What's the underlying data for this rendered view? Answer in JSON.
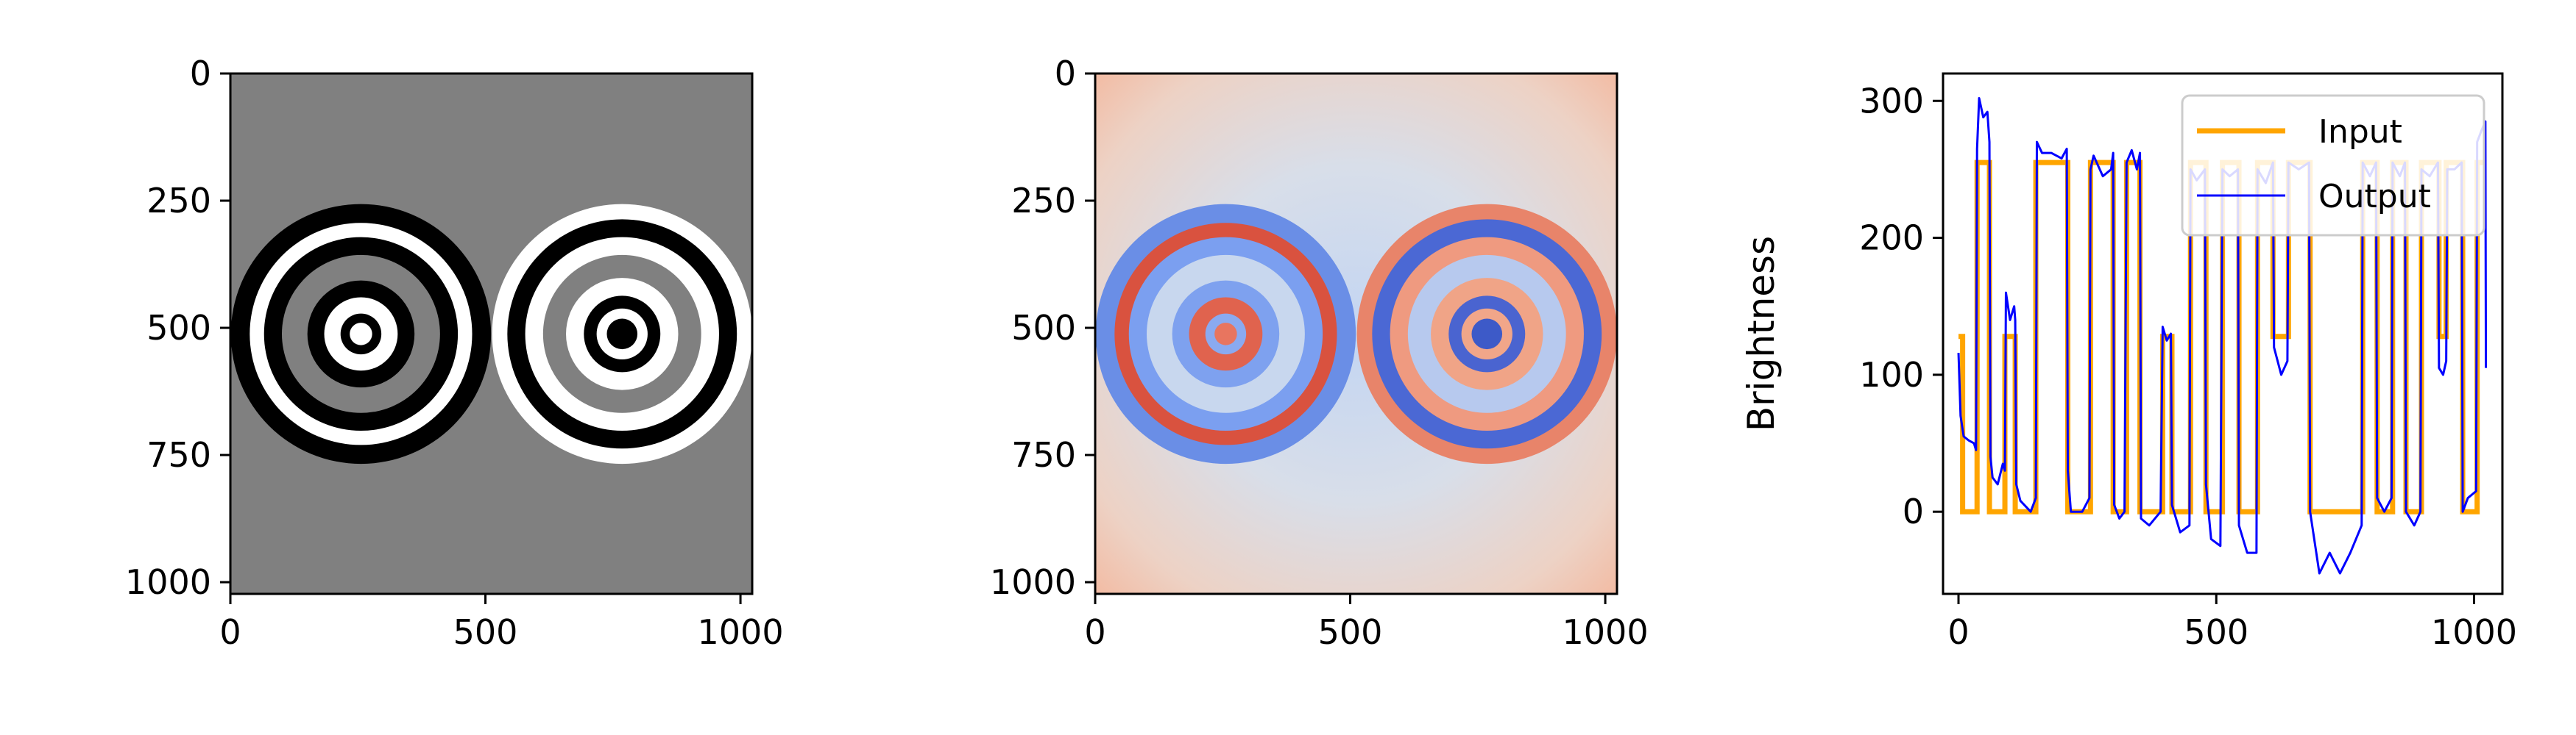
{
  "figure": {
    "background": "#ffffff"
  },
  "chart_data": [
    {
      "type": "heatmap",
      "name": "input-image",
      "colormap": "gray",
      "background_level": 128,
      "xlim": [
        0,
        1023
      ],
      "ylim": [
        1023,
        0
      ],
      "x_ticks": [
        0,
        500,
        1000
      ],
      "y_ticks": [
        0,
        250,
        500,
        750,
        1000
      ],
      "title": "",
      "xlabel": "",
      "ylabel": "",
      "targets": [
        {
          "center": [
            256,
            512
          ],
          "rings": [
            {
              "radius": 255,
              "level": 0
            },
            {
              "radius": 218,
              "level": 255
            },
            {
              "radius": 190,
              "level": 0
            },
            {
              "radius": 155,
              "level": 128
            },
            {
              "radius": 105,
              "level": 0
            },
            {
              "radius": 72,
              "level": 255
            },
            {
              "radius": 40,
              "level": 0
            },
            {
              "radius": 22,
              "level": 255
            }
          ]
        },
        {
          "center": [
            768,
            512
          ],
          "rings": [
            {
              "radius": 255,
              "level": 255
            },
            {
              "radius": 225,
              "level": 0
            },
            {
              "radius": 190,
              "level": 255
            },
            {
              "radius": 155,
              "level": 128
            },
            {
              "radius": 110,
              "level": 255
            },
            {
              "radius": 75,
              "level": 0
            },
            {
              "radius": 50,
              "level": 255
            },
            {
              "radius": 30,
              "level": 0
            }
          ]
        }
      ]
    },
    {
      "type": "heatmap",
      "name": "output-image",
      "colormap": "coolwarm",
      "xlim": [
        0,
        1023
      ],
      "ylim": [
        1023,
        0
      ],
      "x_ticks": [
        0,
        500,
        1000
      ],
      "y_ticks": [
        0,
        250,
        500,
        750,
        1000
      ],
      "title": "",
      "xlabel": "",
      "ylabel": "",
      "targets": [
        {
          "center": [
            256,
            512
          ],
          "rings": [
            {
              "radius": 255,
              "color": "#6a8ee6"
            },
            {
              "radius": 218,
              "color": "#d9523f"
            },
            {
              "radius": 190,
              "color": "#7b9ff0"
            },
            {
              "radius": 155,
              "color": "#c8d7ee"
            },
            {
              "radius": 105,
              "color": "#7ea1ef"
            },
            {
              "radius": 72,
              "color": "#e0634e"
            },
            {
              "radius": 40,
              "color": "#8aaaf0"
            },
            {
              "radius": 22,
              "color": "#e8755f"
            }
          ]
        },
        {
          "center": [
            768,
            512
          ],
          "rings": [
            {
              "radius": 255,
              "color": "#e8846a"
            },
            {
              "radius": 225,
              "color": "#4b68d4"
            },
            {
              "radius": 190,
              "color": "#ef9a80"
            },
            {
              "radius": 155,
              "color": "#b7c9ee"
            },
            {
              "radius": 110,
              "color": "#f0a487"
            },
            {
              "radius": 75,
              "color": "#4a64d0"
            },
            {
              "radius": 50,
              "color": "#f1a689"
            },
            {
              "radius": 30,
              "color": "#3d5ac8"
            }
          ]
        }
      ]
    },
    {
      "type": "line",
      "name": "profile-plot",
      "xlim": [
        -30,
        1055
      ],
      "ylim": [
        -60,
        320
      ],
      "x_ticks": [
        0,
        500,
        1000
      ],
      "y_ticks": [
        0,
        100,
        200,
        300
      ],
      "xlabel": "",
      "ylabel": "Brightness",
      "title": "",
      "grid": false,
      "legend_position": "top-right",
      "series": [
        {
          "name": "Input",
          "color": "#ffa500",
          "segments": [
            [
              0,
              128
            ],
            [
              8,
              0
            ],
            [
              36,
              255
            ],
            [
              60,
              0
            ],
            [
              90,
              128
            ],
            [
              110,
              0
            ],
            [
              150,
              255
            ],
            [
              212,
              0
            ],
            [
              256,
              255
            ],
            [
              300,
              0
            ],
            [
              326,
              255
            ],
            [
              352,
              0
            ],
            [
              396,
              128
            ],
            [
              414,
              0
            ],
            [
              450,
              255
            ],
            [
              480,
              0
            ],
            [
              512,
              255
            ],
            [
              544,
              0
            ],
            [
              580,
              255
            ],
            [
              610,
              128
            ],
            [
              640,
              255
            ],
            [
              682,
              0
            ],
            [
              784,
              255
            ],
            [
              812,
              0
            ],
            [
              842,
              255
            ],
            [
              868,
              0
            ],
            [
              898,
              255
            ],
            [
              932,
              128
            ],
            [
              946,
              255
            ],
            [
              978,
              0
            ],
            [
              1006,
              255
            ]
          ]
        },
        {
          "name": "Output",
          "color": "#0000ff",
          "points": [
            [
              0,
              116
            ],
            [
              4,
              70
            ],
            [
              10,
              55
            ],
            [
              20,
              52
            ],
            [
              30,
              50
            ],
            [
              34,
              45
            ],
            [
              36,
              265
            ],
            [
              40,
              302
            ],
            [
              48,
              288
            ],
            [
              56,
              292
            ],
            [
              60,
              270
            ],
            [
              62,
              40
            ],
            [
              66,
              25
            ],
            [
              76,
              20
            ],
            [
              86,
              35
            ],
            [
              90,
              30
            ],
            [
              92,
              160
            ],
            [
              100,
              140
            ],
            [
              108,
              150
            ],
            [
              110,
              140
            ],
            [
              112,
              20
            ],
            [
              120,
              8
            ],
            [
              140,
              0
            ],
            [
              150,
              10
            ],
            [
              152,
              270
            ],
            [
              162,
              262
            ],
            [
              180,
              262
            ],
            [
              200,
              258
            ],
            [
              210,
              265
            ],
            [
              212,
              30
            ],
            [
              218,
              0
            ],
            [
              240,
              0
            ],
            [
              254,
              10
            ],
            [
              256,
              250
            ],
            [
              262,
              260
            ],
            [
              280,
              245
            ],
            [
              296,
              250
            ],
            [
              300,
              262
            ],
            [
              302,
              5
            ],
            [
              312,
              -5
            ],
            [
              322,
              0
            ],
            [
              326,
              255
            ],
            [
              336,
              264
            ],
            [
              346,
              250
            ],
            [
              352,
              262
            ],
            [
              354,
              -5
            ],
            [
              370,
              -10
            ],
            [
              392,
              0
            ],
            [
              396,
              135
            ],
            [
              404,
              125
            ],
            [
              412,
              130
            ],
            [
              414,
              5
            ],
            [
              430,
              -15
            ],
            [
              448,
              -10
            ],
            [
              450,
              250
            ],
            [
              462,
              242
            ],
            [
              478,
              250
            ],
            [
              480,
              20
            ],
            [
              490,
              -20
            ],
            [
              508,
              -25
            ],
            [
              512,
              250
            ],
            [
              526,
              245
            ],
            [
              542,
              250
            ],
            [
              544,
              -10
            ],
            [
              560,
              -30
            ],
            [
              578,
              -30
            ],
            [
              580,
              250
            ],
            [
              596,
              240
            ],
            [
              610,
              255
            ],
            [
              612,
              120
            ],
            [
              626,
              100
            ],
            [
              638,
              110
            ],
            [
              640,
              255
            ],
            [
              660,
              250
            ],
            [
              680,
              255
            ],
            [
              682,
              0
            ],
            [
              700,
              -45
            ],
            [
              720,
              -30
            ],
            [
              740,
              -45
            ],
            [
              760,
              -30
            ],
            [
              782,
              -10
            ],
            [
              784,
              255
            ],
            [
              798,
              245
            ],
            [
              810,
              255
            ],
            [
              812,
              10
            ],
            [
              826,
              0
            ],
            [
              840,
              10
            ],
            [
              842,
              255
            ],
            [
              856,
              245
            ],
            [
              866,
              255
            ],
            [
              868,
              0
            ],
            [
              884,
              -10
            ],
            [
              896,
              0
            ],
            [
              898,
              250
            ],
            [
              914,
              245
            ],
            [
              930,
              255
            ],
            [
              932,
              105
            ],
            [
              940,
              100
            ],
            [
              946,
              110
            ],
            [
              948,
              250
            ],
            [
              962,
              250
            ],
            [
              976,
              255
            ],
            [
              978,
              0
            ],
            [
              988,
              10
            ],
            [
              1004,
              15
            ],
            [
              1006,
              270
            ],
            [
              1014,
              278
            ],
            [
              1022,
              285
            ],
            [
              1023,
              105
            ]
          ]
        }
      ]
    }
  ]
}
